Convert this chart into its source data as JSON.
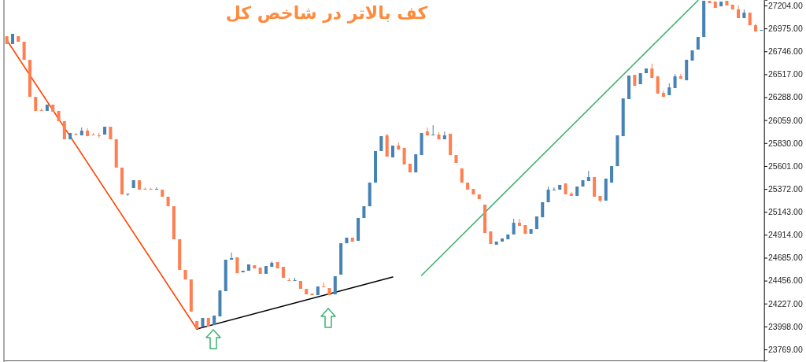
{
  "chart_data": {
    "type": "candlestick",
    "title": "کف بالاتر در شاخص کل",
    "tick_labels": "y",
    "categories": [
      null,
      null,
      null,
      null,
      null,
      null,
      null,
      null,
      null,
      null,
      null,
      null,
      null,
      null,
      null,
      null,
      null,
      null,
      null,
      null,
      null,
      null,
      null,
      null,
      null,
      null,
      null,
      null,
      null,
      null,
      null,
      null,
      null,
      null,
      null,
      null,
      null,
      null,
      null,
      null,
      null,
      null,
      null,
      null,
      null,
      null,
      null,
      null,
      null,
      null,
      null,
      null,
      null,
      null,
      null,
      null,
      null,
      null,
      null,
      null,
      null,
      null,
      null,
      null,
      null,
      null,
      null,
      null,
      null,
      null,
      null,
      null,
      null,
      null,
      null,
      null,
      null,
      null,
      null,
      null,
      null,
      null,
      null,
      null,
      null,
      null,
      null,
      null,
      null,
      null,
      null,
      null,
      null,
      null,
      null,
      null,
      null,
      null,
      null,
      null,
      null,
      null,
      null,
      null,
      null,
      null,
      null,
      null,
      null,
      null,
      null,
      null,
      null,
      null,
      null,
      null,
      null,
      null,
      null,
      null,
      null,
      null,
      null,
      null,
      null,
      null,
      null,
      null,
      null,
      null,
      null,
      null
    ],
    "ylim": [
      23659,
      27259
    ],
    "yticks": [
      {
        "value": 23769,
        "label": "23769.00"
      },
      {
        "value": 23998,
        "label": "23998.00"
      },
      {
        "value": 24227,
        "label": "24227.00"
      },
      {
        "value": 24456,
        "label": "24456.00"
      },
      {
        "value": 24685,
        "label": "24685.00"
      },
      {
        "value": 24914,
        "label": "24914.00"
      },
      {
        "value": 25143,
        "label": "25143.00"
      },
      {
        "value": 25372,
        "label": "25372.00"
      },
      {
        "value": 25601,
        "label": "25601.00"
      },
      {
        "value": 25830,
        "label": "25830.00"
      },
      {
        "value": 26059,
        "label": "26059.00"
      },
      {
        "value": 26288,
        "label": "26288.00"
      },
      {
        "value": 26517,
        "label": "26517.00"
      },
      {
        "value": 26746,
        "label": "26746.00"
      },
      {
        "value": 26975,
        "label": "26975.00"
      },
      {
        "value": 27204,
        "label": "27204.00"
      }
    ],
    "ohlc": [
      [
        26897,
        26897,
        26819,
        26819
      ],
      [
        26819,
        26921,
        26819,
        26921
      ],
      [
        26897,
        26897,
        26842,
        26842
      ],
      [
        26842,
        26842,
        26662,
        26662
      ],
      [
        26662,
        26662,
        26292,
        26292
      ],
      [
        26292,
        26292,
        26151,
        26151
      ],
      [
        26159,
        26174,
        26151,
        26151
      ],
      [
        26151,
        26214,
        26151,
        26214
      ],
      [
        26214,
        26214,
        26143,
        26143
      ],
      [
        26151,
        26151,
        26048,
        26048
      ],
      [
        26048,
        26048,
        25868,
        25868
      ],
      [
        25868,
        25930,
        25868,
        25930
      ],
      [
        25923,
        25930,
        25907,
        25915
      ],
      [
        25907,
        25985,
        25907,
        25954
      ],
      [
        25954,
        25978,
        25899,
        25899
      ],
      [
        25915,
        25930,
        25907,
        25907
      ],
      [
        25907,
        25930,
        25883,
        25899
      ],
      [
        25915,
        25993,
        25915,
        25993
      ],
      [
        25993,
        25993,
        25868,
        25868
      ],
      [
        25868,
        25868,
        25585,
        25585
      ],
      [
        25585,
        25585,
        25317,
        25317
      ],
      [
        25317,
        25325,
        25302,
        25325
      ],
      [
        25380,
        25459,
        25380,
        25459
      ],
      [
        25459,
        25459,
        25365,
        25365
      ],
      [
        25372,
        25388,
        25365,
        25365
      ],
      [
        25372,
        25380,
        25365,
        25365
      ],
      [
        25365,
        25388,
        25365,
        25372
      ],
      [
        25365,
        25365,
        25294,
        25294
      ],
      [
        25294,
        25294,
        25199,
        25199
      ],
      [
        25199,
        25199,
        24869,
        24869
      ],
      [
        24869,
        24869,
        24563,
        24563
      ],
      [
        24563,
        24563,
        24468,
        24468
      ],
      [
        24468,
        24468,
        24146,
        24146
      ],
      [
        24052,
        24052,
        23973,
        23973
      ],
      [
        23997,
        24083,
        23997,
        24083
      ],
      [
        24083,
        24083,
        23997,
        23997
      ],
      [
        24012,
        24107,
        24012,
        24107
      ],
      [
        24099,
        24358,
        24099,
        24358
      ],
      [
        24351,
        24665,
        24351,
        24665
      ],
      [
        24665,
        24736,
        24665,
        24681
      ],
      [
        24689,
        24689,
        24531,
        24531
      ],
      [
        24539,
        24555,
        24539,
        24555
      ],
      [
        24555,
        24618,
        24555,
        24618
      ],
      [
        24610,
        24610,
        24578,
        24578
      ],
      [
        24586,
        24586,
        24524,
        24524
      ],
      [
        24524,
        24602,
        24524,
        24602
      ],
      [
        24594,
        24649,
        24594,
        24634
      ],
      [
        24641,
        24641,
        24578,
        24578
      ],
      [
        24594,
        24594,
        24484,
        24484
      ],
      [
        24460,
        24484,
        24453,
        24453
      ],
      [
        24453,
        24484,
        24453,
        24460
      ],
      [
        24453,
        24453,
        24374,
        24374
      ],
      [
        24374,
        24374,
        24319,
        24319
      ],
      [
        24327,
        24327,
        24311,
        24311
      ],
      [
        24311,
        24398,
        24311,
        24398
      ],
      [
        24398,
        24437,
        24390,
        24390
      ],
      [
        24382,
        24382,
        24311,
        24311
      ],
      [
        24319,
        24500,
        24319,
        24500
      ],
      [
        24516,
        24830,
        24516,
        24830
      ],
      [
        24830,
        24885,
        24830,
        24885
      ],
      [
        24885,
        24885,
        24846,
        24846
      ],
      [
        24854,
        25082,
        24854,
        25082
      ],
      [
        25082,
        25199,
        25082,
        25199
      ],
      [
        25199,
        25435,
        25199,
        25435
      ],
      [
        25435,
        25750,
        25435,
        25750
      ],
      [
        25750,
        25899,
        25750,
        25899
      ],
      [
        25907,
        25923,
        25695,
        25695
      ],
      [
        25687,
        25805,
        25687,
        25805
      ],
      [
        25805,
        25836,
        25765,
        25765
      ],
      [
        25781,
        25781,
        25616,
        25616
      ],
      [
        25624,
        25624,
        25537,
        25537
      ],
      [
        25537,
        25718,
        25537,
        25718
      ],
      [
        25710,
        25930,
        25710,
        25930
      ],
      [
        25946,
        25985,
        25907,
        25907
      ],
      [
        25907,
        26009,
        25907,
        25915
      ],
      [
        25915,
        25938,
        25868,
        25868
      ],
      [
        25868,
        25946,
        25868,
        25907
      ],
      [
        25923,
        25923,
        25710,
        25710
      ],
      [
        25710,
        25710,
        25632,
        25632
      ],
      [
        25577,
        25577,
        25435,
        25435
      ],
      [
        25435,
        25435,
        25365,
        25365
      ],
      [
        25372,
        25372,
        25317,
        25317
      ],
      [
        25317,
        25317,
        25270,
        25270
      ],
      [
        25215,
        25215,
        24932,
        24932
      ],
      [
        24948,
        24948,
        24822,
        24822
      ],
      [
        24815,
        24846,
        24815,
        24846
      ],
      [
        24846,
        24877,
        24846,
        24877
      ],
      [
        24869,
        24917,
        24869,
        24917
      ],
      [
        24917,
        25074,
        24917,
        25034
      ],
      [
        25034,
        25074,
        25003,
        25003
      ],
      [
        25011,
        25011,
        24924,
        24924
      ],
      [
        24924,
        24971,
        24924,
        24971
      ],
      [
        24971,
        25097,
        24971,
        25097
      ],
      [
        25089,
        25239,
        25089,
        25239
      ],
      [
        25239,
        25396,
        25239,
        25365
      ],
      [
        25357,
        25388,
        25357,
        25365
      ],
      [
        25365,
        25412,
        25365,
        25412
      ],
      [
        25427,
        25427,
        25317,
        25317
      ],
      [
        25325,
        25341,
        25302,
        25302
      ],
      [
        25302,
        25396,
        25302,
        25396
      ],
      [
        25396,
        25459,
        25396,
        25459
      ],
      [
        25451,
        25553,
        25451,
        25490
      ],
      [
        25490,
        25490,
        25294,
        25294
      ],
      [
        25302,
        25302,
        25239,
        25255
      ],
      [
        25255,
        25475,
        25255,
        25475
      ],
      [
        25435,
        25600,
        25435,
        25600
      ],
      [
        25600,
        25907,
        25600,
        25907
      ],
      [
        25899,
        26276,
        25899,
        26276
      ],
      [
        26269,
        26504,
        26269,
        26504
      ],
      [
        26512,
        26512,
        26402,
        26402
      ],
      [
        26418,
        26528,
        26418,
        26528
      ],
      [
        26528,
        26575,
        26528,
        26575
      ],
      [
        26575,
        26622,
        26481,
        26481
      ],
      [
        26497,
        26497,
        26324,
        26324
      ],
      [
        26331,
        26355,
        26292,
        26292
      ],
      [
        26308,
        26426,
        26308,
        26386
      ],
      [
        26379,
        26520,
        26379,
        26497
      ],
      [
        26497,
        26520,
        26473,
        26473
      ],
      [
        26457,
        26662,
        26457,
        26662
      ],
      [
        26654,
        26756,
        26654,
        26756
      ],
      [
        26764,
        26889,
        26764,
        26889
      ],
      [
        26889,
        27251,
        26889,
        27251
      ],
      [
        27251,
        27251,
        27228,
        27228
      ],
      [
        27243,
        27243,
        27180,
        27180
      ],
      [
        27196,
        27243,
        27196,
        27243
      ],
      [
        27251,
        27251,
        27204,
        27204
      ],
      [
        27212,
        27212,
        27165,
        27165
      ],
      [
        27165,
        27204,
        27078,
        27078
      ],
      [
        27078,
        27165,
        27078,
        27133
      ],
      [
        27133,
        27133,
        27007,
        27007
      ],
      [
        27007,
        27023,
        26945,
        26945
      ],
      [
        26952,
        26960,
        26952,
        26960
      ]
    ],
    "colors": [
      "#ff7f50",
      "#4682b4",
      "#ff7f50",
      "#ff7f50",
      "#ff7f50",
      "#ff7f50",
      "#ff7f50",
      "#4682b4",
      "#ff7f50",
      "#ff7f50",
      "#ff7f50",
      "#4682b4",
      "#ff7f50",
      "#4682b4",
      "#ff7f50",
      "#ff7f50",
      "#ff7f50",
      "#4682b4",
      "#ff7f50",
      "#ff7f50",
      "#ff7f50",
      "#4682b4",
      "#4682b4",
      "#ff7f50",
      "#ff7f50",
      "#ff7f50",
      "#4682b4",
      "#ff7f50",
      "#ff7f50",
      "#ff7f50",
      "#ff7f50",
      "#ff7f50",
      "#ff7f50",
      "#ff7f50",
      "#4682b4",
      "#ff7f50",
      "#4682b4",
      "#4682b4",
      "#4682b4",
      "#4682b4",
      "#ff7f50",
      "#4682b4",
      "#4682b4",
      "#ff7f50",
      "#ff7f50",
      "#4682b4",
      "#4682b4",
      "#ff7f50",
      "#ff7f50",
      "#ff7f50",
      "#4682b4",
      "#ff7f50",
      "#ff7f50",
      "#ff7f50",
      "#4682b4",
      "#ff7f50",
      "#ff7f50",
      "#4682b4",
      "#4682b4",
      "#4682b4",
      "#ff7f50",
      "#4682b4",
      "#4682b4",
      "#4682b4",
      "#4682b4",
      "#4682b4",
      "#ff7f50",
      "#4682b4",
      "#ff7f50",
      "#ff7f50",
      "#ff7f50",
      "#4682b4",
      "#4682b4",
      "#ff7f50",
      "#4682b4",
      "#ff7f50",
      "#4682b4",
      "#ff7f50",
      "#ff7f50",
      "#ff7f50",
      "#ff7f50",
      "#ff7f50",
      "#ff7f50",
      "#ff7f50",
      "#ff7f50",
      "#4682b4",
      "#4682b4",
      "#4682b4",
      "#4682b4",
      "#ff7f50",
      "#ff7f50",
      "#4682b4",
      "#4682b4",
      "#4682b4",
      "#4682b4",
      "#4682b4",
      "#4682b4",
      "#ff7f50",
      "#ff7f50",
      "#4682b4",
      "#4682b4",
      "#4682b4",
      "#ff7f50",
      "#ff7f50",
      "#4682b4",
      "#4682b4",
      "#4682b4",
      "#4682b4",
      "#4682b4",
      "#ff7f50",
      "#4682b4",
      "#4682b4",
      "#ff7f50",
      "#ff7f50",
      "#ff7f50",
      "#4682b4",
      "#4682b4",
      "#ff7f50",
      "#4682b4",
      "#4682b4",
      "#4682b4",
      "#4682b4",
      "#ff7f50",
      "#ff7f50",
      "#4682b4",
      "#ff7f50",
      "#ff7f50",
      "#ff7f50",
      "#4682b4",
      "#ff7f50",
      "#ff7f50",
      "#4682b4"
    ],
    "series": [
      {
        "type": "line",
        "color": "#ff4500",
        "values": [
          26858,
          null,
          null,
          null,
          null,
          null,
          null,
          null,
          null,
          null,
          null,
          null,
          null,
          null,
          null,
          null,
          null,
          null,
          null,
          null,
          null,
          null,
          null,
          null,
          null,
          null,
          null,
          null,
          null,
          null,
          null,
          null,
          null,
          23973,
          null,
          null,
          null,
          null,
          null,
          null,
          null,
          null,
          null,
          null,
          null,
          null,
          null,
          null,
          null,
          null,
          null,
          null,
          null,
          null,
          null,
          null,
          null,
          null,
          null,
          null,
          null,
          null,
          null,
          null,
          null,
          null,
          null,
          null,
          null,
          null,
          null,
          null,
          null,
          null,
          null,
          null,
          null,
          null,
          null,
          null,
          null,
          null,
          null,
          null,
          null,
          null,
          null,
          null,
          null,
          null,
          null,
          null,
          null,
          null,
          null,
          null,
          null,
          null,
          null,
          null,
          null,
          null,
          null,
          null,
          null,
          null,
          null,
          null,
          null,
          null,
          null,
          null,
          null,
          null,
          null,
          null,
          null,
          null,
          null,
          null,
          null,
          null,
          null,
          null,
          null,
          null,
          null,
          null,
          null,
          null,
          null,
          null
        ]
      },
      {
        "type": "line",
        "color": "#000000",
        "values": [
          null,
          null,
          null,
          null,
          null,
          null,
          null,
          null,
          null,
          null,
          null,
          null,
          null,
          null,
          null,
          null,
          null,
          null,
          null,
          null,
          null,
          null,
          null,
          null,
          null,
          null,
          null,
          null,
          null,
          null,
          null,
          null,
          null,
          23973,
          null,
          null,
          null,
          null,
          null,
          null,
          null,
          null,
          null,
          null,
          null,
          null,
          null,
          null,
          null,
          null,
          null,
          null,
          null,
          null,
          null,
          null,
          null,
          null,
          null,
          null,
          null,
          null,
          null,
          null,
          null,
          null,
          null,
          24492,
          null,
          null,
          null,
          null,
          null,
          null,
          null,
          null,
          null,
          null,
          null,
          null,
          null,
          null,
          null,
          null,
          null,
          null,
          null,
          null,
          null,
          null,
          null,
          null,
          null,
          null,
          null,
          null,
          null,
          null,
          null,
          null,
          null,
          null,
          null,
          null,
          null,
          null,
          null,
          null,
          null,
          null,
          null,
          null,
          null,
          null,
          null,
          null,
          null,
          null,
          null,
          null,
          null,
          null,
          null,
          null,
          null,
          null,
          null,
          null,
          null,
          null,
          null,
          null
        ]
      },
      {
        "type": "line",
        "color": "#3cb371",
        "values": [
          null,
          null,
          null,
          null,
          null,
          null,
          null,
          null,
          null,
          null,
          null,
          null,
          null,
          null,
          null,
          null,
          null,
          null,
          null,
          null,
          null,
          null,
          null,
          null,
          null,
          null,
          null,
          null,
          null,
          null,
          null,
          null,
          null,
          null,
          null,
          null,
          null,
          null,
          null,
          null,
          null,
          null,
          null,
          null,
          null,
          null,
          null,
          null,
          null,
          null,
          null,
          null,
          null,
          null,
          null,
          null,
          null,
          null,
          null,
          null,
          null,
          null,
          null,
          null,
          null,
          null,
          null,
          null,
          null,
          null,
          null,
          null,
          24508,
          null,
          null,
          null,
          null,
          null,
          null,
          null,
          null,
          null,
          null,
          null,
          null,
          null,
          null,
          null,
          null,
          null,
          null,
          null,
          null,
          null,
          null,
          null,
          null,
          null,
          null,
          null,
          null,
          null,
          null,
          null,
          null,
          null,
          null,
          null,
          null,
          null,
          null,
          null,
          null,
          null,
          null,
          null,
          null,
          null,
          null,
          null,
          27255,
          null,
          null,
          null,
          null,
          null,
          null,
          null,
          null,
          null,
          null,
          null
        ]
      }
    ]
  }
}
